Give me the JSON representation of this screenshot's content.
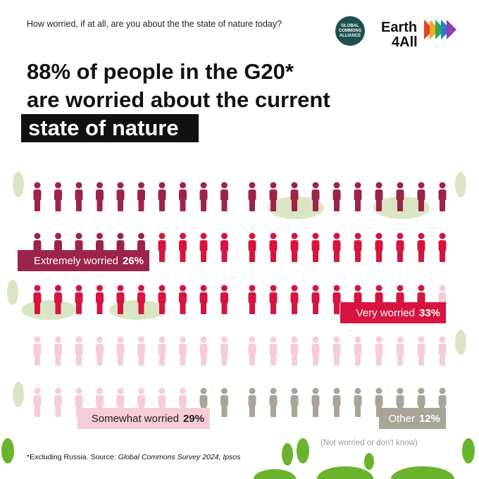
{
  "question": "How worried, if at all, are you about the the state of nature today?",
  "logos": {
    "gca": [
      "GLOBAL",
      "COMMONS",
      "ALLIANCE"
    ],
    "earth4all": [
      "Earth",
      "4All"
    ]
  },
  "headline": [
    "88% of people in the G20*",
    "are worried about the current",
    "state of nature"
  ],
  "chart_data": {
    "type": "waffle",
    "series": [
      {
        "name": "Extremely worried",
        "color": "#9c2449",
        "values": [
          26
        ],
        "value_labels": [
          "26%"
        ]
      },
      {
        "name": "Very worried",
        "color": "#d7143f",
        "values": [
          33
        ],
        "value_labels": [
          "33%"
        ]
      },
      {
        "name": "Somewhat worried",
        "color": "#f6cdd6",
        "values": [
          29
        ],
        "value_labels": [
          "29%"
        ]
      },
      {
        "name": "Other",
        "color": "#a9a498",
        "values": [
          12
        ],
        "value_labels": [
          "12%"
        ]
      }
    ],
    "other_note": "(Not worried or don't know)"
  },
  "footnote": {
    "text": "*Excluding Russia. Source: ",
    "source": "Global Commons Survey 2024, Ipsos"
  }
}
